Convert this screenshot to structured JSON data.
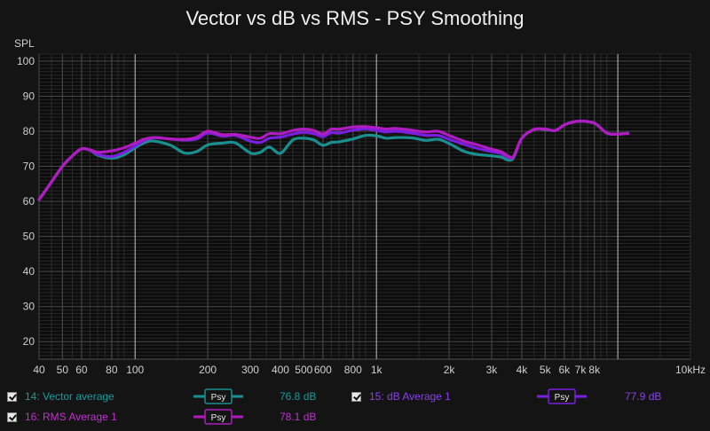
{
  "chart_data": {
    "type": "line",
    "title": "Vector vs dB vs RMS - PSY Smoothing",
    "ylabel": "SPL",
    "ylim": [
      15,
      102
    ],
    "xlim": [
      40,
      20000
    ],
    "xscale": "log",
    "grid": true,
    "y_ticks": [
      100,
      90,
      80,
      70,
      60,
      50,
      40,
      30,
      20
    ],
    "x_ticks": [
      {
        "v": 40,
        "label": "40"
      },
      {
        "v": 50,
        "label": "50"
      },
      {
        "v": 60,
        "label": "60"
      },
      {
        "v": 80,
        "label": "80"
      },
      {
        "v": 100,
        "label": "100"
      },
      {
        "v": 200,
        "label": "200"
      },
      {
        "v": 300,
        "label": "300"
      },
      {
        "v": 400,
        "label": "400"
      },
      {
        "v": 500,
        "label": "500"
      },
      {
        "v": 600,
        "label": "600"
      },
      {
        "v": 800,
        "label": "800"
      },
      {
        "v": 1000,
        "label": "1k"
      },
      {
        "v": 2000,
        "label": "2k"
      },
      {
        "v": 3000,
        "label": "3k"
      },
      {
        "v": 4000,
        "label": "4k"
      },
      {
        "v": 5000,
        "label": "5k"
      },
      {
        "v": 6000,
        "label": "6k"
      },
      {
        "v": 7000,
        "label": "7k"
      },
      {
        "v": 8000,
        "label": "8k"
      },
      {
        "v": 10000,
        "label": "10kHz"
      }
    ],
    "series": [
      {
        "name": "14: Vector average",
        "color": "#1a8f8f",
        "value": "76.8 dB",
        "x": [
          40,
          45,
          50,
          55,
          60,
          65,
          70,
          80,
          90,
          100,
          110,
          120,
          140,
          160,
          180,
          200,
          230,
          260,
          300,
          330,
          360,
          400,
          450,
          500,
          550,
          600,
          650,
          700,
          800,
          900,
          1000,
          1100,
          1200,
          1400,
          1600,
          1800,
          2000,
          2300,
          2600,
          3000,
          3300,
          3500,
          3700,
          4000,
          4500,
          5000,
          5500,
          6000,
          6500,
          7000,
          8000,
          9000,
          10000,
          11000
        ],
        "y": [
          60.5,
          65.5,
          70,
          73,
          75,
          74.6,
          73.2,
          72.3,
          73.3,
          75.3,
          76.8,
          77.2,
          76,
          73.8,
          74.2,
          76.1,
          76.6,
          76.7,
          73.8,
          74,
          75.5,
          73.7,
          77.5,
          78,
          77.5,
          76,
          76.8,
          77,
          77.8,
          78.8,
          78.7,
          78,
          78.2,
          78.1,
          77.4,
          77.7,
          76.5,
          74.3,
          73.4,
          73,
          72.6,
          71.8,
          72.5,
          78,
          80.5,
          80.5,
          80.2,
          81.8,
          82.6,
          82.9,
          82.3,
          79.5,
          79.2,
          79.4
        ]
      },
      {
        "name": "15: dB Average 1",
        "color": "#7a1fe0",
        "value": "77.9 dB",
        "x": [
          40,
          45,
          50,
          55,
          60,
          65,
          70,
          80,
          90,
          100,
          110,
          120,
          140,
          160,
          180,
          200,
          230,
          260,
          300,
          330,
          360,
          400,
          450,
          500,
          550,
          600,
          650,
          700,
          800,
          900,
          1000,
          1100,
          1200,
          1400,
          1600,
          1800,
          2000,
          2300,
          2600,
          3000,
          3300,
          3500,
          3700,
          4000,
          4500,
          5000,
          5500,
          6000,
          6500,
          7000,
          8000,
          9000,
          10000,
          11000
        ],
        "y": [
          60.5,
          65.5,
          70,
          73,
          75,
          74.6,
          73.4,
          72.8,
          74,
          75.8,
          77.5,
          78.2,
          77.8,
          77.5,
          77.8,
          79.5,
          78.6,
          78.8,
          77.2,
          76.8,
          78,
          78.3,
          79.2,
          79.7,
          79.3,
          78.5,
          79.6,
          79.5,
          80.3,
          80.7,
          80.2,
          79.8,
          80,
          79.5,
          78.8,
          78.8,
          77.7,
          76.3,
          75.2,
          74.2,
          73.6,
          72.6,
          72.8,
          78,
          80.5,
          80.6,
          80.2,
          81.8,
          82.6,
          82.9,
          82.3,
          79.5,
          79.2,
          79.4
        ]
      },
      {
        "name": "16: RMS Average 1",
        "color": "#b01cc0",
        "value": "78.1 dB",
        "x": [
          40,
          45,
          50,
          55,
          60,
          65,
          70,
          80,
          90,
          100,
          110,
          120,
          140,
          160,
          180,
          200,
          230,
          260,
          300,
          330,
          360,
          400,
          450,
          500,
          550,
          600,
          650,
          700,
          800,
          900,
          1000,
          1100,
          1200,
          1400,
          1600,
          1800,
          2000,
          2300,
          2600,
          3000,
          3300,
          3500,
          3700,
          4000,
          4500,
          5000,
          5500,
          6000,
          6500,
          7000,
          8000,
          9000,
          10000,
          11000
        ],
        "y": [
          60.5,
          65.5,
          70,
          73,
          75,
          74.7,
          74,
          74.4,
          75.3,
          76.6,
          77.8,
          78.2,
          77.8,
          77.7,
          78.3,
          80,
          79,
          79.1,
          78.3,
          78,
          79.3,
          79.3,
          80.2,
          80.6,
          80.2,
          79.2,
          80.6,
          80.6,
          81.2,
          81.3,
          81,
          80.6,
          80.8,
          80.3,
          79.8,
          80,
          78.8,
          77.2,
          76.2,
          74.9,
          74.1,
          73,
          72.8,
          78,
          80.5,
          80.6,
          80.2,
          81.8,
          82.6,
          82.9,
          82.3,
          79.5,
          79.2,
          79.4
        ]
      }
    ]
  },
  "legend": {
    "sample_label": "Psy",
    "items": [
      {
        "id": "vector",
        "label": "14: Vector average",
        "value": "76.8 dB",
        "color": "#1a8f8f",
        "checked": true
      },
      {
        "id": "db",
        "label": "15: dB Average 1",
        "value": "77.9 dB",
        "color": "#7a1fe0",
        "checked": true
      },
      {
        "id": "rms",
        "label": "16: RMS Average 1",
        "value": "78.1 dB",
        "color": "#b01cc0",
        "checked": true
      }
    ]
  }
}
